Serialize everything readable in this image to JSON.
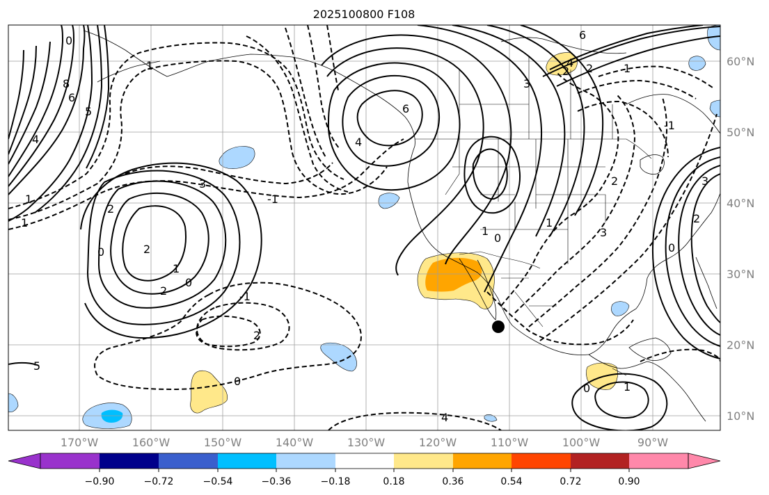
{
  "title": "2025100800 F108",
  "map": {
    "lon_labels": [
      "170°W",
      "160°W",
      "150°W",
      "140°W",
      "130°W",
      "120°W",
      "110°W",
      "100°W",
      "90°W"
    ],
    "lat_labels": [
      "60°N",
      "50°N",
      "40°N",
      "30°N",
      "20°N",
      "10°N"
    ],
    "contour_labels": {
      "a": "0",
      "b": "8",
      "c": "6",
      "d": "5",
      "e": "4",
      "f": "1",
      "g": "2",
      "h": "3",
      "i": "-1",
      "j": "1",
      "k": "2",
      "l": "1",
      "m": "2",
      "n": "0",
      "o": "-1",
      "p": "2",
      "q": "0",
      "r": "1",
      "s": "0",
      "t": "2",
      "u": "6",
      "v": "4",
      "w": "6",
      "x": "3",
      "y": "2",
      "z": "4",
      "aa": "1",
      "ab": "1",
      "ac": "0",
      "ad": "3",
      "ae": "2",
      "af": "1",
      "ag": "0",
      "ah": "2",
      "ai": "0",
      "aj": "1",
      "ak": "4",
      "al": "5",
      "am": "-1",
      "an": "3"
    },
    "marker": "black-dot"
  },
  "colorbar": {
    "colors": [
      "#9932cc",
      "#00008b",
      "#3a5fcd",
      "#00bfff",
      "#add8ff",
      "#ffffff",
      "#ffe88a",
      "#ffa500",
      "#ff4500",
      "#b22222",
      "#ff88aa"
    ],
    "tick_labels": [
      "−0.90",
      "−0.72",
      "−0.54",
      "−0.36",
      "−0.18",
      "0.18",
      "0.36",
      "0.54",
      "0.72",
      "0.90"
    ]
  }
}
